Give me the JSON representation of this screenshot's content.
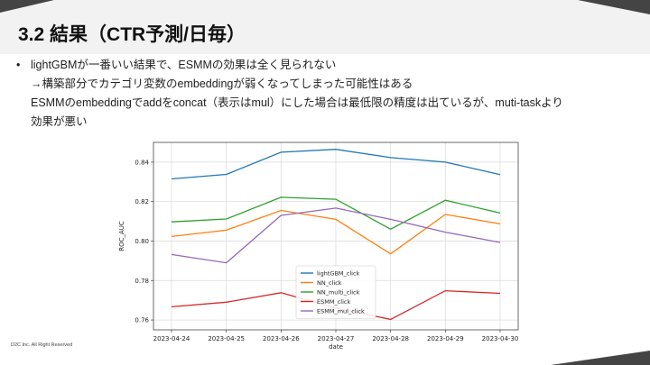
{
  "slide": {
    "title": "3.2 結果（CTR予測/日毎）",
    "bullet_lines": [
      "lightGBMが一番いい結果で、ESMMの効果は全く見られない",
      "→構築部分でカテゴリ変数のembeddingが弱くなってしまった可能性はある",
      "ESMMのembeddingでaddをconcat（表示はmul）にした場合は最低限の精度は出ているが、muti-taskより",
      "効果が悪い"
    ],
    "footer": "D2C Inc. All Right Reserved"
  },
  "chart_data": {
    "type": "line",
    "xlabel": "date",
    "ylabel": "ROC_AUC",
    "x": [
      "2023-04-24",
      "2023-04-25",
      "2023-04-26",
      "2023-04-27",
      "2023-04-28",
      "2023-04-29",
      "2023-04-30"
    ],
    "ylim": [
      0.755,
      0.85
    ],
    "yticks": [
      0.76,
      0.78,
      0.8,
      0.82,
      0.84
    ],
    "ytick_labels": [
      "0.76",
      "0.78",
      "0.80",
      "0.82",
      "0.84"
    ],
    "grid": true,
    "legend_position": "bottom-center",
    "series": [
      {
        "name": "lightGBM_click",
        "color": "#1f77b4",
        "values": [
          0.8315,
          0.8338,
          0.845,
          0.8465,
          0.8423,
          0.84,
          0.8337
        ]
      },
      {
        "name": "NN_click",
        "color": "#ff7f0e",
        "values": [
          0.8023,
          0.8055,
          0.8155,
          0.811,
          0.7935,
          0.8135,
          0.8087
        ]
      },
      {
        "name": "NN_multi_click",
        "color": "#2ca02c",
        "values": [
          0.8097,
          0.8112,
          0.8222,
          0.8212,
          0.806,
          0.8207,
          0.8142
        ]
      },
      {
        "name": "ESMM_click",
        "color": "#d62728",
        "values": [
          0.7667,
          0.769,
          0.7738,
          0.766,
          0.7603,
          0.7748,
          0.7735
        ]
      },
      {
        "name": "ESMM_mul_click",
        "color": "#9467bd",
        "values": [
          0.7932,
          0.789,
          0.813,
          0.8167,
          0.811,
          0.8045,
          0.7993
        ]
      }
    ]
  }
}
